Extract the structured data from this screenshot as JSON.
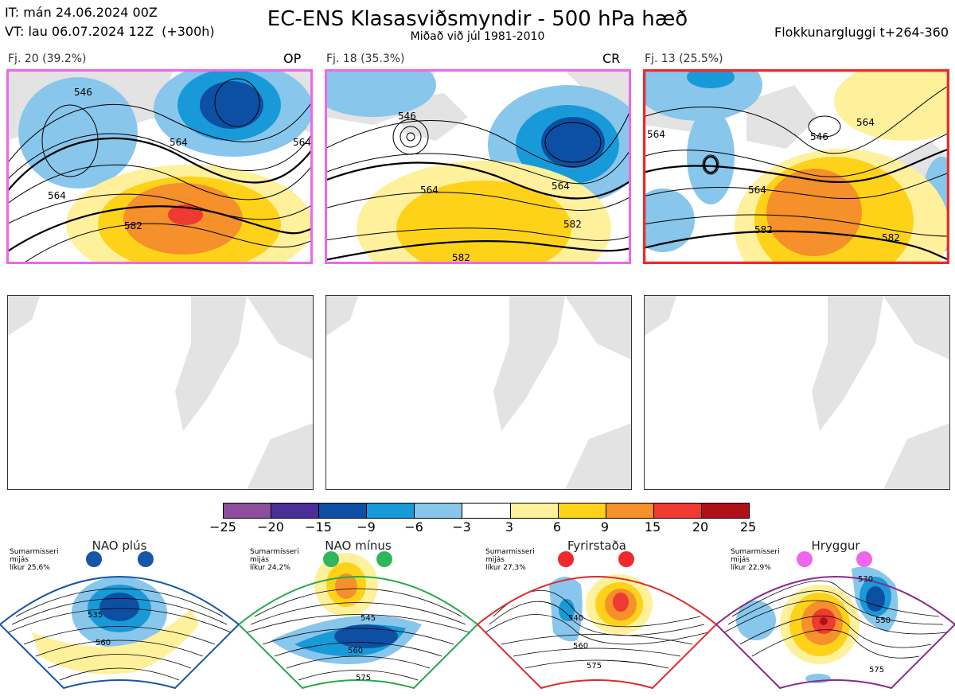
{
  "header": {
    "init_time": "IT: mán 24.06.2024 00Z",
    "valid_time": "VT: lau 06.07.2024 12Z  (+300h)",
    "title": "EC-ENS Klasasviðsmyndir - 500 hPa hæð",
    "subtitle": "Miðað við júl 1981-2010",
    "window": "Flokkunargluggi t+264-360"
  },
  "clusters": [
    {
      "label": "Fj. 20 (39.2%)",
      "tag": "OP",
      "frame_color": "#ee66ee",
      "contours": [
        "546",
        "564",
        "564",
        "564",
        "582"
      ]
    },
    {
      "label": "Fj. 18 (35.3%)",
      "tag": "CR",
      "frame_color": "#ee66ee",
      "contours": [
        "546",
        "564",
        "564",
        "582",
        "582"
      ]
    },
    {
      "label": "Fj. 13 (25.5%)",
      "tag": "",
      "frame_color": "#ee2a2a",
      "contours": [
        "564",
        "564",
        "546",
        "564",
        "582",
        "582"
      ]
    }
  ],
  "colorbar": {
    "colors": [
      "#8e4e9e",
      "#4a2f98",
      "#0d4fa2",
      "#189ad8",
      "#88c6ec",
      "#ffffff",
      "#fff09c",
      "#ffd21a",
      "#f5902a",
      "#ee3a30",
      "#b01118"
    ],
    "ticks": [
      "−25",
      "−20",
      "−15",
      "−9",
      "−6",
      "−3",
      "3",
      "6",
      "9",
      "15",
      "20",
      "25"
    ]
  },
  "regimes": [
    {
      "name": "NAO plús",
      "info": "Sumarmisseri\nmijás\nlíkur 25,6%",
      "color": "#1656a6",
      "dot_color": "#1656a6",
      "contours": [
        "535",
        "560"
      ]
    },
    {
      "name": "NAO mínus",
      "info": "Sumarmisseri\nmijás\nlíkur 24,2%",
      "color": "#2aa84a",
      "dot_color": "#2fb55a",
      "contours": [
        "545",
        "560",
        "575"
      ]
    },
    {
      "name": "Fyrirstaða",
      "info": "Sumarmisseri\nmijás\nlíkur 27,3%",
      "color": "#e02a2a",
      "dot_color": "#ee2a2a",
      "contours": [
        "540",
        "560",
        "575"
      ]
    },
    {
      "name": "Hryggur",
      "info": "Sumarmisseri\nmijás\nlíkur 22,9%",
      "color": "#8a2a8a",
      "dot_color": "#ee66ee",
      "contours": [
        "530",
        "550",
        "575"
      ]
    }
  ]
}
